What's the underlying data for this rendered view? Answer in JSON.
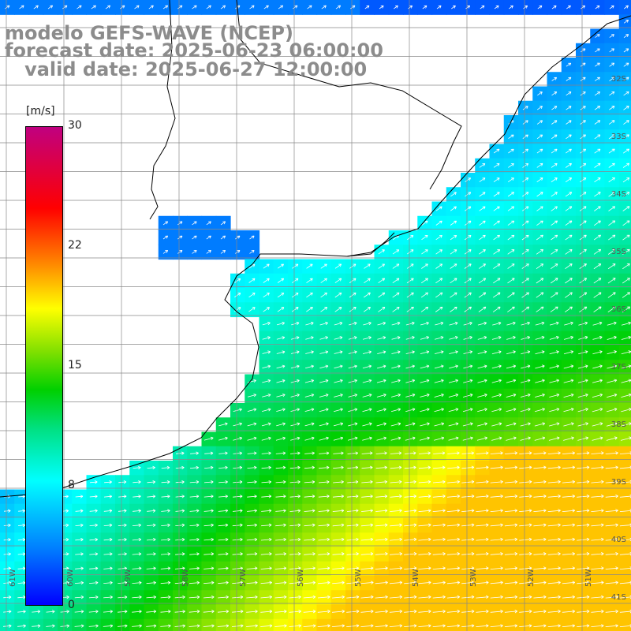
{
  "title": {
    "line1": "modelo GEFS-WAVE (NCEP)",
    "line2": "forecast date: 2025-06-23 06:00:00",
    "line3": "   valid date: 2025-06-27 12:00:00"
  },
  "colorbar": {
    "unit": "[m/s]",
    "ticks": [
      "30",
      "22",
      "15",
      "8",
      "0"
    ],
    "colors": [
      "#0000ff",
      "#0080ff",
      "#00ffff",
      "#00e080",
      "#00d000",
      "#80e000",
      "#ffff00",
      "#ff8000",
      "#ff0000",
      "#c00080"
    ]
  },
  "latitude_labels": [
    "32S",
    "33S",
    "34S",
    "35S",
    "36S",
    "37S",
    "38S",
    "39S",
    "40S",
    "41S"
  ],
  "longitude_labels": [
    "61W",
    "60W",
    "59W",
    "58W",
    "57W",
    "56W",
    "55W",
    "54W",
    "53W",
    "52W",
    "51W"
  ],
  "field": {
    "variable": "wind speed",
    "vector_color": "#ffffff",
    "coast_color": "#000000",
    "grid_color": "#888888"
  }
}
